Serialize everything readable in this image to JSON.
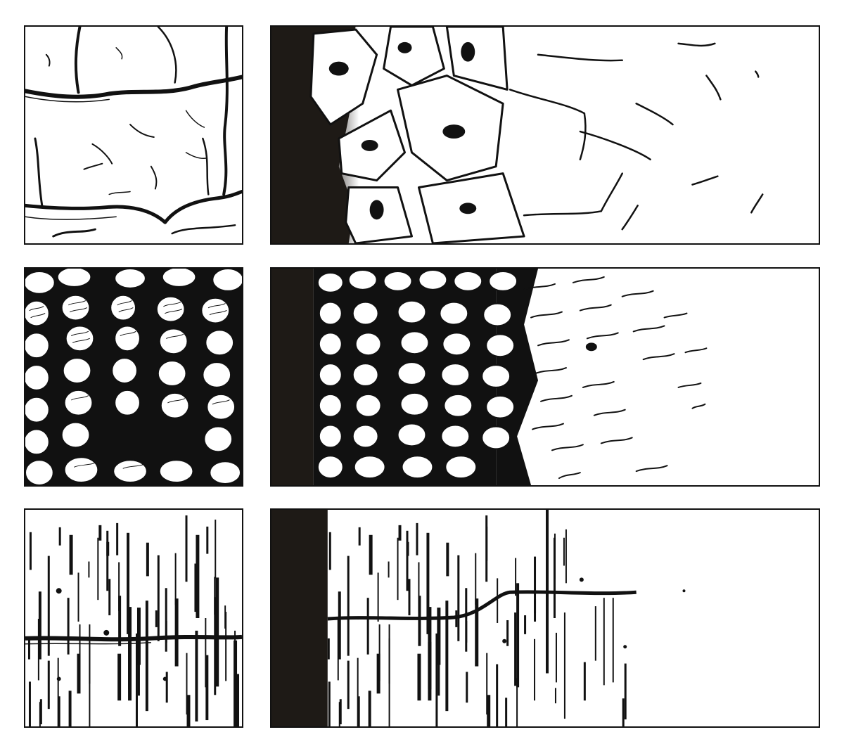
{
  "panels": [
    {
      "row": 1,
      "kind": "detail",
      "texture": "cracked-stone"
    },
    {
      "row": 1,
      "kind": "gradient-strip",
      "texture": "cracked-stone"
    },
    {
      "row": 2,
      "kind": "detail",
      "texture": "braided-cobbles"
    },
    {
      "row": 2,
      "kind": "gradient-strip",
      "texture": "braided-cobbles"
    },
    {
      "row": 3,
      "kind": "detail",
      "texture": "wood-planks"
    },
    {
      "row": 3,
      "kind": "gradient-strip",
      "texture": "wood-planks"
    }
  ],
  "colors": {
    "ink": "#111111",
    "paper": "#ffffff",
    "shadow": "#1e1a16"
  }
}
